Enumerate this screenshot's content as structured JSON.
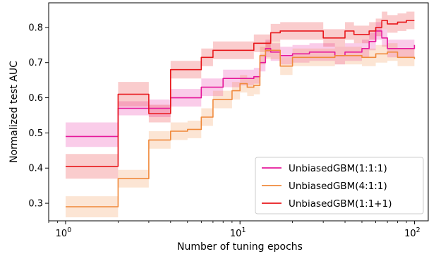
{
  "chart_data": {
    "type": "line",
    "xlabel": "Number of tuning epochs",
    "ylabel": "Normalized test AUC",
    "xscale": "log",
    "xlim": [
      0.8,
      120
    ],
    "ylim": [
      0.25,
      0.87
    ],
    "xticks": [
      {
        "value": 1,
        "base": "10",
        "exp": "0"
      },
      {
        "value": 10,
        "base": "10",
        "exp": "1"
      },
      {
        "value": 100,
        "base": "10",
        "exp": "2"
      }
    ],
    "yticks": [
      0.3,
      0.4,
      0.5,
      0.6,
      0.7,
      0.8
    ],
    "yticklabels": [
      "0.3",
      "0.4",
      "0.5",
      "0.6",
      "0.7",
      "0.8"
    ],
    "grid": false,
    "legend_position": "lower-right",
    "series": [
      {
        "name": "UnbiasedGBM(1:1:1)",
        "color": "#e6199b",
        "x": [
          1,
          2,
          3,
          4,
          6,
          8,
          10,
          12,
          13,
          14,
          15,
          17,
          20,
          25,
          30,
          35,
          40,
          45,
          50,
          55,
          60,
          65,
          70,
          80,
          90,
          100
        ],
        "y": [
          0.49,
          0.57,
          0.57,
          0.6,
          0.63,
          0.655,
          0.655,
          0.66,
          0.7,
          0.74,
          0.73,
          0.72,
          0.725,
          0.73,
          0.73,
          0.72,
          0.73,
          0.73,
          0.74,
          0.76,
          0.79,
          0.77,
          0.74,
          0.74,
          0.74,
          0.75
        ],
        "lower": [
          0.46,
          0.55,
          0.545,
          0.575,
          0.605,
          0.63,
          0.635,
          0.64,
          0.675,
          0.715,
          0.705,
          0.695,
          0.7,
          0.705,
          0.705,
          0.695,
          0.705,
          0.705,
          0.715,
          0.735,
          0.765,
          0.745,
          0.715,
          0.715,
          0.715,
          0.725
        ],
        "upper": [
          0.53,
          0.59,
          0.595,
          0.625,
          0.655,
          0.68,
          0.68,
          0.685,
          0.725,
          0.765,
          0.755,
          0.745,
          0.75,
          0.755,
          0.755,
          0.745,
          0.755,
          0.755,
          0.765,
          0.785,
          0.815,
          0.795,
          0.765,
          0.765,
          0.765,
          0.775
        ]
      },
      {
        "name": "UnbiasedGBM(4:1:1)",
        "color": "#f08a3c",
        "x": [
          1,
          2,
          3,
          4,
          5,
          6,
          7,
          8,
          9,
          10,
          11,
          12,
          13,
          14,
          15,
          17,
          20,
          25,
          30,
          35,
          40,
          50,
          60,
          70,
          80,
          90,
          100
        ],
        "y": [
          0.29,
          0.37,
          0.48,
          0.505,
          0.51,
          0.545,
          0.595,
          0.595,
          0.62,
          0.64,
          0.63,
          0.635,
          0.72,
          0.735,
          0.735,
          0.69,
          0.715,
          0.715,
          0.715,
          0.72,
          0.72,
          0.715,
          0.725,
          0.73,
          0.715,
          0.715,
          0.71
        ],
        "lower": [
          0.26,
          0.345,
          0.455,
          0.48,
          0.485,
          0.52,
          0.57,
          0.57,
          0.595,
          0.615,
          0.605,
          0.61,
          0.695,
          0.71,
          0.71,
          0.665,
          0.69,
          0.69,
          0.69,
          0.695,
          0.695,
          0.69,
          0.7,
          0.705,
          0.69,
          0.69,
          0.685
        ],
        "upper": [
          0.32,
          0.395,
          0.505,
          0.53,
          0.535,
          0.57,
          0.62,
          0.62,
          0.645,
          0.665,
          0.655,
          0.66,
          0.745,
          0.76,
          0.76,
          0.715,
          0.74,
          0.74,
          0.74,
          0.745,
          0.745,
          0.74,
          0.75,
          0.755,
          0.74,
          0.74,
          0.735
        ]
      },
      {
        "name": "UnbiasedGBM(1:1+1)",
        "color": "#e8181c",
        "x": [
          1,
          2,
          3,
          4,
          6,
          7,
          10,
          12,
          15,
          17,
          20,
          25,
          30,
          35,
          40,
          45,
          50,
          55,
          60,
          65,
          70,
          80,
          90,
          100
        ],
        "y": [
          0.405,
          0.61,
          0.555,
          0.68,
          0.715,
          0.735,
          0.735,
          0.755,
          0.785,
          0.79,
          0.79,
          0.79,
          0.77,
          0.77,
          0.79,
          0.78,
          0.78,
          0.79,
          0.8,
          0.82,
          0.81,
          0.815,
          0.82,
          0.82
        ],
        "lower": [
          0.37,
          0.575,
          0.53,
          0.655,
          0.69,
          0.71,
          0.71,
          0.73,
          0.76,
          0.765,
          0.765,
          0.765,
          0.745,
          0.745,
          0.765,
          0.755,
          0.755,
          0.765,
          0.775,
          0.795,
          0.785,
          0.79,
          0.795,
          0.795
        ],
        "upper": [
          0.44,
          0.645,
          0.58,
          0.705,
          0.74,
          0.76,
          0.76,
          0.78,
          0.81,
          0.815,
          0.815,
          0.815,
          0.795,
          0.795,
          0.815,
          0.805,
          0.805,
          0.815,
          0.825,
          0.845,
          0.835,
          0.84,
          0.845,
          0.845
        ]
      }
    ]
  }
}
